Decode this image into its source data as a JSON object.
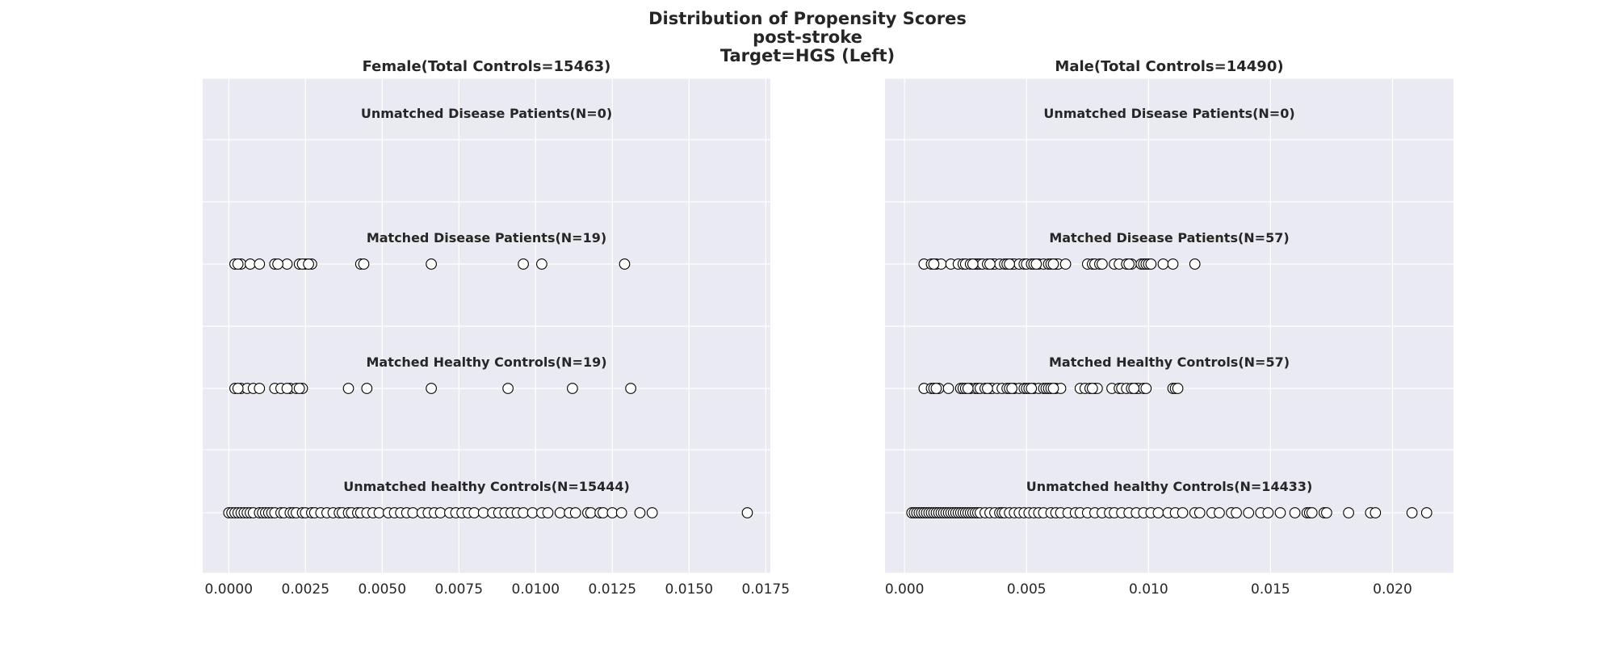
{
  "figure": {
    "title_lines": [
      "Distribution of Propensity Scores",
      "post-stroke",
      "Target=HGS (Left)"
    ]
  },
  "chart_data": [
    {
      "type": "scatter",
      "title": "Female(Total Controls=15463)",
      "xlim": [
        -0.00085,
        0.01765
      ],
      "xticks": [
        0.0,
        0.0025,
        0.005,
        0.0075,
        0.01,
        0.0125,
        0.015,
        0.0175
      ],
      "xtick_labels": [
        "0.0000",
        "0.0025",
        "0.0050",
        "0.0075",
        "0.0100",
        "0.0125",
        "0.0150",
        "0.0175"
      ],
      "grid": true,
      "groups": [
        {
          "label": "Unmatched Disease Patients(N=0)",
          "x": []
        },
        {
          "label": "Matched Disease Patients(N=19)",
          "x": [
            0.0002,
            0.0004,
            0.0007,
            0.001,
            0.0015,
            0.0019,
            0.0023,
            0.0025,
            0.0027,
            0.0024,
            0.0016,
            0.0043,
            0.0044,
            0.0066,
            0.0096,
            0.0102,
            0.0129,
            0.0003,
            0.0026
          ]
        },
        {
          "label": "Matched Healthy Controls(N=19)",
          "x": [
            0.0002,
            0.0004,
            0.0006,
            0.0008,
            0.001,
            0.0015,
            0.0017,
            0.002,
            0.0022,
            0.0024,
            0.0039,
            0.0045,
            0.0066,
            0.0091,
            0.0112,
            0.0131,
            0.0003,
            0.0019,
            0.0023
          ]
        },
        {
          "label": "Unmatched healthy Controls(N=15444)",
          "x": [
            0.0,
            0.0001,
            0.0002,
            0.0003,
            0.0004,
            0.0005,
            0.0006,
            0.0007,
            0.0008,
            0.001,
            0.0011,
            0.0012,
            0.0013,
            0.0014,
            0.0015,
            0.0017,
            0.0018,
            0.002,
            0.0021,
            0.0022,
            0.0024,
            0.0025,
            0.0027,
            0.0028,
            0.003,
            0.0032,
            0.0034,
            0.0036,
            0.0037,
            0.0039,
            0.004,
            0.0042,
            0.0043,
            0.0045,
            0.0047,
            0.0049,
            0.0052,
            0.0054,
            0.0056,
            0.0058,
            0.006,
            0.0063,
            0.0065,
            0.0067,
            0.0069,
            0.0072,
            0.0074,
            0.0076,
            0.0078,
            0.008,
            0.0083,
            0.0086,
            0.0088,
            0.009,
            0.0092,
            0.0094,
            0.0096,
            0.0099,
            0.0102,
            0.0104,
            0.0108,
            0.0111,
            0.0113,
            0.0117,
            0.0118,
            0.0121,
            0.0122,
            0.0125,
            0.0128,
            0.0134,
            0.0138,
            0.0169
          ]
        }
      ]
    },
    {
      "type": "scatter",
      "title": "Male(Total Controls=14490)",
      "xlim": [
        -0.0008,
        0.0225
      ],
      "xticks": [
        0.0,
        0.005,
        0.01,
        0.015,
        0.02
      ],
      "xtick_labels": [
        "0.000",
        "0.005",
        "0.010",
        "0.015",
        "0.020"
      ],
      "grid": true,
      "groups": [
        {
          "label": "Unmatched Disease Patients(N=0)",
          "x": []
        },
        {
          "label": "Matched Disease Patients(N=57)",
          "x": [
            0.0008,
            0.0011,
            0.0013,
            0.0015,
            0.0019,
            0.0022,
            0.0024,
            0.0025,
            0.0027,
            0.0029,
            0.003,
            0.0031,
            0.0032,
            0.0034,
            0.0036,
            0.0037,
            0.0039,
            0.0041,
            0.0042,
            0.0044,
            0.0045,
            0.0047,
            0.0049,
            0.005,
            0.0052,
            0.0053,
            0.0055,
            0.0057,
            0.0059,
            0.006,
            0.0062,
            0.0063,
            0.0066,
            0.0075,
            0.0077,
            0.0078,
            0.008,
            0.0081,
            0.0086,
            0.0088,
            0.0091,
            0.0093,
            0.0097,
            0.0098,
            0.0099,
            0.01,
            0.0101,
            0.0106,
            0.011,
            0.0119,
            0.0012,
            0.0028,
            0.0035,
            0.0043,
            0.0054,
            0.0061,
            0.0092
          ]
        },
        {
          "label": "Matched Healthy Controls(N=57)",
          "x": [
            0.0008,
            0.0011,
            0.0012,
            0.0014,
            0.0018,
            0.0023,
            0.0024,
            0.0025,
            0.0027,
            0.0029,
            0.003,
            0.0031,
            0.0033,
            0.0035,
            0.0036,
            0.0038,
            0.004,
            0.0042,
            0.0043,
            0.0045,
            0.0047,
            0.0049,
            0.005,
            0.0051,
            0.0053,
            0.0055,
            0.0057,
            0.0058,
            0.0059,
            0.006,
            0.0062,
            0.0064,
            0.0072,
            0.0074,
            0.0076,
            0.0078,
            0.0079,
            0.0085,
            0.0088,
            0.0089,
            0.0091,
            0.0093,
            0.0095,
            0.0096,
            0.0098,
            0.0099,
            0.011,
            0.0111,
            0.0112,
            0.0013,
            0.0026,
            0.0034,
            0.0044,
            0.0052,
            0.0061,
            0.0077,
            0.0094
          ]
        },
        {
          "label": "Unmatched healthy Controls(N=14433)",
          "x": [
            0.0003,
            0.0004,
            0.0005,
            0.0006,
            0.0007,
            0.0008,
            0.0009,
            0.001,
            0.0011,
            0.0012,
            0.0013,
            0.0014,
            0.0015,
            0.0016,
            0.0017,
            0.0018,
            0.0019,
            0.002,
            0.0021,
            0.0022,
            0.0023,
            0.0024,
            0.0025,
            0.0026,
            0.0027,
            0.0028,
            0.0029,
            0.003,
            0.0031,
            0.0033,
            0.0035,
            0.0037,
            0.0039,
            0.004,
            0.0041,
            0.0043,
            0.0045,
            0.0047,
            0.0049,
            0.0051,
            0.0053,
            0.0055,
            0.0057,
            0.006,
            0.0062,
            0.0064,
            0.0067,
            0.007,
            0.0072,
            0.0075,
            0.0078,
            0.0081,
            0.0084,
            0.0086,
            0.0089,
            0.0092,
            0.0095,
            0.0098,
            0.0101,
            0.0104,
            0.0108,
            0.0111,
            0.0114,
            0.0119,
            0.0121,
            0.0126,
            0.0129,
            0.0134,
            0.0136,
            0.0141,
            0.0146,
            0.0149,
            0.0154,
            0.016,
            0.0165,
            0.0166,
            0.0167,
            0.0172,
            0.0173,
            0.0182,
            0.0191,
            0.0193,
            0.0208,
            0.0214
          ]
        }
      ]
    }
  ]
}
